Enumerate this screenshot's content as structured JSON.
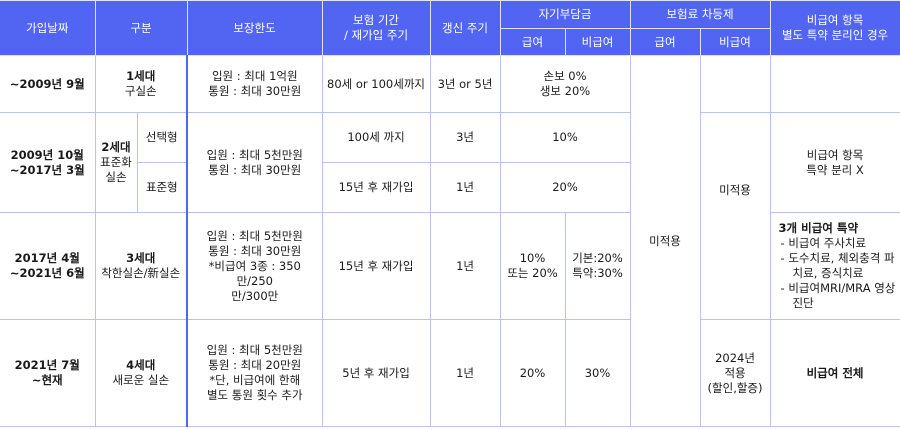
{
  "headers": {
    "join_date": "가입날짜",
    "type": "구분",
    "coverage_limit": "보장한도",
    "period": "보험 기간\n/ 재가입 주기",
    "renewal": "갱신 주기",
    "self_pay": "자기부담금",
    "premium_diff": "보험료 차등제",
    "noncovered_separation": "비급여 항목\n별도 특약 분리인 경우",
    "covered": "급여",
    "noncovered": "비급여",
    "covered2": "급여",
    "noncovered2": "비급여"
  },
  "rows": {
    "gen1": {
      "date": "~2009년 9월",
      "gen_title": "1세대",
      "gen_sub": "구실손",
      "limit": "입원 : 최대 1억원\n통원 : 최대 30만원",
      "period": "80세 or 100세까지",
      "renewal": "3년 or 5년",
      "self_pay": "손보 0%\n생보 20%"
    },
    "gen2": {
      "date": "2009년 10월\n~2017년 3월",
      "gen_title": "2세대",
      "gen_sub": "표준화\n실손",
      "option_a": "선택형",
      "option_b": "표준형",
      "limit": "입원 : 최대 5천만원\n통원 : 최대 30만원",
      "period_a": "100세 까지",
      "renewal_a": "3년",
      "self_pay_a": "10%",
      "period_b": "15년 후 재가입",
      "renewal_b": "1년",
      "self_pay_b": "20%",
      "separation": "비급여 항목\n특약 분리 X"
    },
    "gen3": {
      "date": "2017년 4월\n~2021년 6월",
      "gen_title": "3세대",
      "gen_sub": "착한실손/新실손",
      "limit": "입원 : 최대 5천만원\n통원 : 최대 30만원\n*비급여 3종 : 350만/250\n만/300만",
      "period": "15년 후 재가입",
      "renewal": "1년",
      "covered": "10%\n또는 20%",
      "noncovered": "기본:20%\n특약:30%",
      "separation_title": "3개 비급여 특약",
      "separation_items": [
        "비급여 주사치료",
        "도수치료, 체외충격 파치료, 증식치료",
        "비급여MRI/MRA 영상 진단"
      ]
    },
    "gen4": {
      "date": "2021년 7월\n~현재",
      "gen_title": "4세대",
      "gen_sub": "새로운 실손",
      "limit": "입원 : 최대 5천만원\n통원 : 최대 20만원\n*단, 비급여에 한해\n별도 통원 횟수 추가",
      "period": "5년 후 재가입",
      "renewal": "1년",
      "covered": "20%",
      "noncovered": "30%",
      "premium_noncovered": "2024년\n적용\n(할인,할증)",
      "separation": "비급여 전체"
    },
    "premium_covered_all": "미적용",
    "premium_noncovered_gen123": "미적용"
  }
}
